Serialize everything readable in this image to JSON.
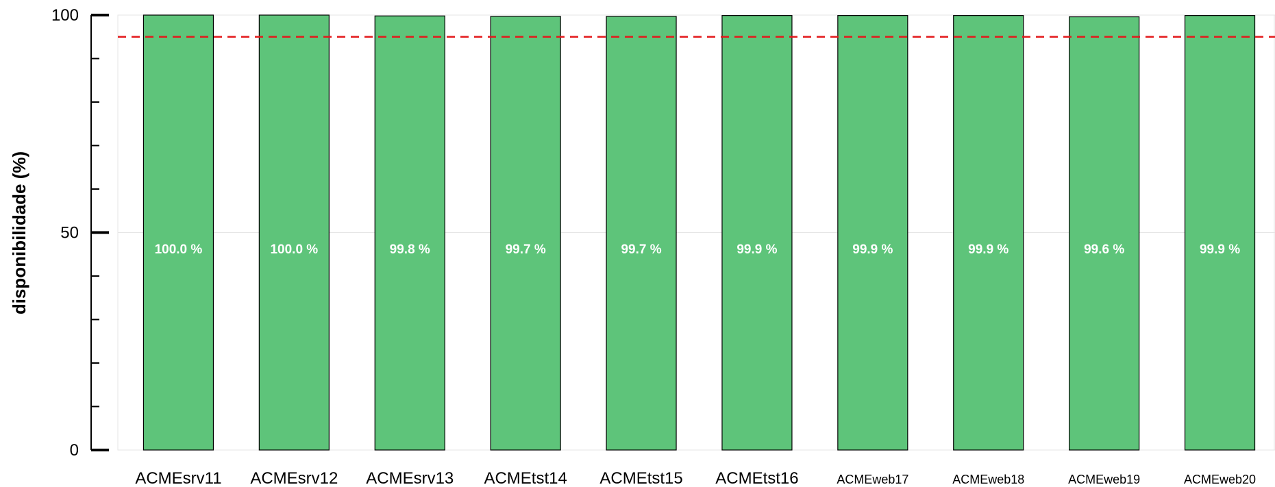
{
  "chart_data": {
    "type": "bar",
    "title": "",
    "xlabel": "",
    "ylabel": "disponibilidade (%)",
    "ylim": [
      0,
      100
    ],
    "yticks": [
      0,
      50,
      100
    ],
    "grid": true,
    "legend": "none",
    "reference_line": {
      "value": 95,
      "color": "#e31a1c",
      "style": "dashed"
    },
    "bar_color": "#5ec47a",
    "categories": [
      "ACMEsrv11",
      "ACMEsrv12",
      "ACMEsrv13",
      "ACMEtst14",
      "ACMEtst15",
      "ACMEtst16",
      "ACMEweb17",
      "ACMEweb18",
      "ACMEweb19",
      "ACMEweb20"
    ],
    "values": [
      100.0,
      100.0,
      99.8,
      99.7,
      99.7,
      99.9,
      99.9,
      99.9,
      99.6,
      99.9
    ],
    "data_labels": [
      "100.0 %",
      "100.0 %",
      "99.8 %",
      "99.7 %",
      "99.7 %",
      "99.9 %",
      "99.9 %",
      "99.9 %",
      "99.6 %",
      "99.9 %"
    ]
  }
}
